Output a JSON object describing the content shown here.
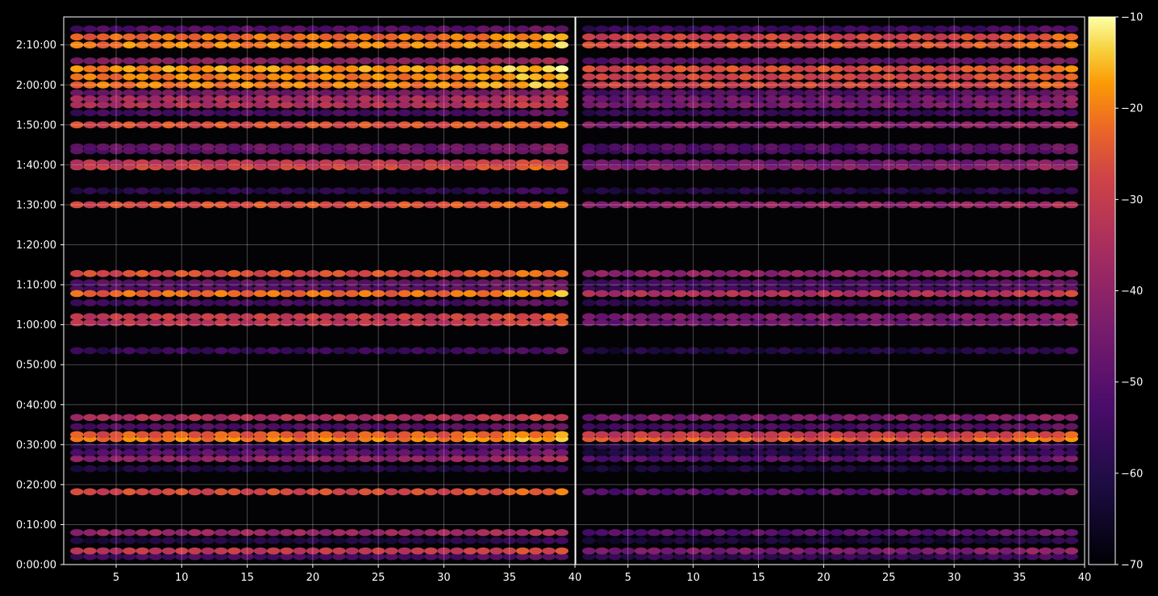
{
  "chart_data": {
    "type": "heatmap",
    "title": "",
    "xlabel": "",
    "ylabel": "",
    "colormap": "inferno",
    "background": "#000000",
    "grid": true,
    "panels": [
      {
        "xlim": [
          1,
          40
        ],
        "xticks": [
          "5",
          "10",
          "15",
          "20",
          "25",
          "30",
          "35",
          "40"
        ],
        "xtick_values": [
          5,
          10,
          15,
          20,
          25,
          30,
          35,
          40
        ]
      },
      {
        "xlim": [
          1,
          40
        ],
        "xticks": [
          "5",
          "10",
          "15",
          "20",
          "25",
          "30",
          "35",
          "40"
        ],
        "xtick_values": [
          5,
          10,
          15,
          20,
          25,
          30,
          35,
          40
        ]
      }
    ],
    "yaxis": {
      "ylim_minutes": [
        0,
        137
      ],
      "ticks": [
        "0:00:00",
        "0:10:00",
        "0:20:00",
        "0:30:00",
        "0:40:00",
        "0:50:00",
        "1:00:00",
        "1:10:00",
        "1:20:00",
        "1:30:00",
        "1:40:00",
        "1:50:00",
        "2:00:00",
        "2:10:00"
      ],
      "tick_values_minutes": [
        0,
        10,
        20,
        30,
        40,
        50,
        60,
        70,
        80,
        90,
        100,
        110,
        120,
        130
      ]
    },
    "colorbar": {
      "range": [
        -70,
        -10
      ],
      "ticks": [
        "−10",
        "−20",
        "−30",
        "−40",
        "−50",
        "−60",
        "−70"
      ],
      "tick_values": [
        -10,
        -20,
        -30,
        -40,
        -50,
        -60,
        -70
      ]
    },
    "bands": [
      {
        "minute": 3.4,
        "left": -31,
        "right": -44
      },
      {
        "minute": 8.0,
        "left": -38,
        "right": -50
      },
      {
        "minute": 18.2,
        "left": -27,
        "right": -50
      },
      {
        "minute": 26.5,
        "left": -40,
        "right": -50
      },
      {
        "minute": 28.0,
        "left": -50,
        "right": -60
      },
      {
        "minute": 31.5,
        "left": -20,
        "right": -24
      },
      {
        "minute": 32.5,
        "left": -24,
        "right": -30
      },
      {
        "minute": 36.8,
        "left": -34,
        "right": -44
      },
      {
        "minute": 60.5,
        "left": -32,
        "right": -46
      },
      {
        "minute": 62.0,
        "left": -30,
        "right": -44
      },
      {
        "minute": 67.8,
        "left": -22,
        "right": -34
      },
      {
        "minute": 72.8,
        "left": -26,
        "right": -40
      },
      {
        "minute": 90.0,
        "left": -26,
        "right": -40
      },
      {
        "minute": 99.5,
        "left": -28,
        "right": -42
      },
      {
        "minute": 100.5,
        "left": -32,
        "right": -46
      },
      {
        "minute": 110.0,
        "left": -26,
        "right": -42
      },
      {
        "minute": 115.0,
        "left": -34,
        "right": -44
      },
      {
        "minute": 116.5,
        "left": -36,
        "right": -46
      },
      {
        "minute": 120.0,
        "left": -20,
        "right": -28
      },
      {
        "minute": 122.0,
        "left": -20,
        "right": -28
      },
      {
        "minute": 124.0,
        "left": -18,
        "right": -26
      },
      {
        "minute": 130.0,
        "left": -20,
        "right": -26
      },
      {
        "minute": 132.0,
        "left": -22,
        "right": -28
      }
    ],
    "faint_bands": [
      {
        "minute": 2.0,
        "left": -52,
        "right": -56
      },
      {
        "minute": 6.0,
        "left": -60,
        "right": -62
      },
      {
        "minute": 24.0,
        "left": -60,
        "right": -62
      },
      {
        "minute": 29.5,
        "left": -55,
        "right": -58
      },
      {
        "minute": 34.5,
        "left": -50,
        "right": -52
      },
      {
        "minute": 53.5,
        "left": -55,
        "right": -60
      },
      {
        "minute": 65.5,
        "left": -52,
        "right": -56
      },
      {
        "minute": 69.0,
        "left": -50,
        "right": -54
      },
      {
        "minute": 70.5,
        "left": -48,
        "right": -52
      },
      {
        "minute": 93.5,
        "left": -58,
        "right": -60
      },
      {
        "minute": 103.5,
        "left": -48,
        "right": -52
      },
      {
        "minute": 104.5,
        "left": -46,
        "right": -50
      },
      {
        "minute": 113.0,
        "left": -52,
        "right": -55
      },
      {
        "minute": 118.0,
        "left": -44,
        "right": -50
      },
      {
        "minute": 126.0,
        "left": -40,
        "right": -48
      },
      {
        "minute": 134.0,
        "left": -50,
        "right": -54
      }
    ]
  }
}
